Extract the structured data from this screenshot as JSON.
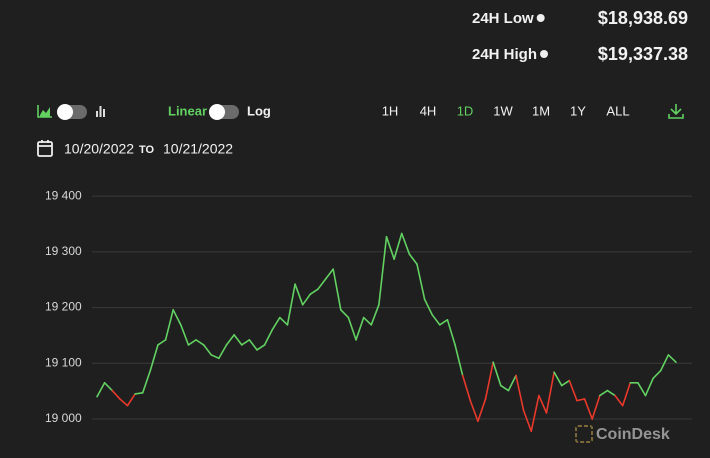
{
  "stats": [
    {
      "label": "24H Low",
      "value": "$18,938.69"
    },
    {
      "label": "24H High",
      "value": "$19,337.38"
    }
  ],
  "scale_toggle": {
    "linear": "Linear",
    "log": "Log"
  },
  "ranges": [
    {
      "label": "1H",
      "active": false
    },
    {
      "label": "4H",
      "active": false
    },
    {
      "label": "1D",
      "active": true
    },
    {
      "label": "1W",
      "active": false
    },
    {
      "label": "1M",
      "active": false
    },
    {
      "label": "1Y",
      "active": false
    },
    {
      "label": "ALL",
      "active": false
    }
  ],
  "date_range": {
    "from": "10/20/2022",
    "separator": "TO",
    "to": "10/21/2022"
  },
  "watermark": "CoinDesk",
  "chart_data": {
    "type": "line",
    "up_color": "#62d162",
    "down_color": "#e8392b",
    "grid": true,
    "ylim": [
      18930,
      19420
    ],
    "yticks": [
      {
        "value": 19000,
        "label": "19 000"
      },
      {
        "value": 19100,
        "label": "19 100"
      },
      {
        "value": 19200,
        "label": "19 200"
      },
      {
        "value": 19300,
        "label": "19 300"
      },
      {
        "value": 19400,
        "label": "19 400"
      }
    ],
    "values": [
      19040,
      19065,
      19051,
      19036,
      19024,
      19045,
      19047,
      19087,
      19133,
      19142,
      19196,
      19169,
      19133,
      19142,
      19133,
      19115,
      19109,
      19133,
      19151,
      19133,
      19142,
      19124,
      19133,
      19160,
      19182,
      19169,
      19242,
      19205,
      19224,
      19233,
      19251,
      19269,
      19196,
      19182,
      19142,
      19182,
      19169,
      19205,
      19327,
      19287,
      19333,
      19296,
      19278,
      19215,
      19187,
      19169,
      19178,
      19133,
      19078,
      19033,
      18996,
      19036,
      19102,
      19060,
      19051,
      19078,
      19015,
      18978,
      19042,
      19011,
      19084,
      19060,
      19069,
      19033,
      19036,
      19000,
      19042,
      19051,
      19042,
      19024,
      19065,
      19065,
      19042,
      19073,
      19087,
      19115,
      19102
    ]
  }
}
